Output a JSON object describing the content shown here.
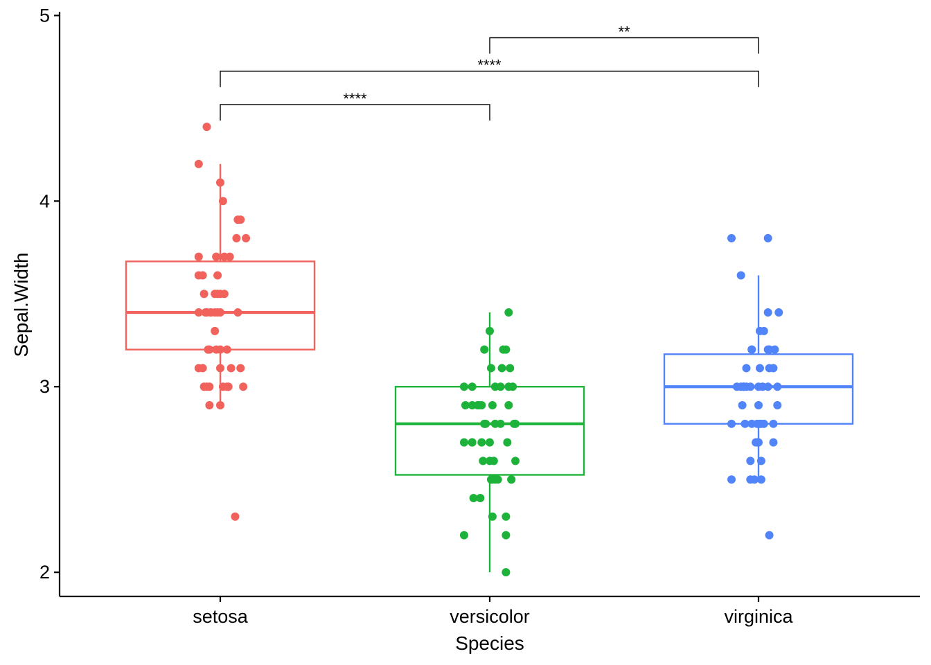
{
  "chart_data": {
    "type": "boxplot",
    "xlabel": "Species",
    "ylabel": "Sepal.Width",
    "ylim": [
      1.87,
      5.02
    ],
    "yticks": [
      2,
      3,
      4,
      5
    ],
    "grid": false,
    "legend": "none",
    "categories": [
      "setosa",
      "versicolor",
      "virginica"
    ],
    "colors": [
      "#F0625B",
      "#1DB33A",
      "#5184F8"
    ],
    "boxes": [
      {
        "category": "setosa",
        "min": 2.9,
        "q1": 3.2,
        "median": 3.4,
        "q3": 3.675,
        "max": 4.2
      },
      {
        "category": "versicolor",
        "min": 2.0,
        "q1": 2.525,
        "median": 2.8,
        "q3": 3.0,
        "max": 3.4
      },
      {
        "category": "virginica",
        "min": 2.5,
        "q1": 2.8,
        "median": 3.0,
        "q3": 3.175,
        "max": 3.6
      }
    ],
    "points": [
      {
        "category": "setosa",
        "jitter": [
          -0.1,
          -0.16,
          0.0,
          0.02,
          0.15,
          0.13,
          0.12,
          0.19,
          0.03,
          -0.03,
          -0.16,
          0.07,
          -0.13,
          -0.02,
          -0.16,
          -0.02,
          0.0,
          -0.04,
          -0.12,
          0.03,
          0.13,
          -0.1,
          -0.11,
          -0.04,
          -0.16,
          -0.02,
          0.0,
          -0.07,
          -0.07,
          -0.04,
          -0.08,
          -0.09,
          0.05,
          -0.03,
          0.0,
          0.08,
          0.15,
          0.0,
          -0.13,
          -0.16,
          0.05,
          -0.12,
          -0.08,
          0.02,
          -0.1,
          0.06,
          0.17,
          0.0,
          -0.08,
          0.11
        ],
        "values": [
          4.4,
          4.2,
          4.1,
          4.0,
          3.9,
          3.9,
          3.8,
          3.8,
          3.7,
          3.7,
          3.7,
          3.7,
          3.6,
          3.6,
          3.6,
          3.5,
          3.5,
          3.5,
          3.5,
          3.5,
          3.4,
          3.4,
          3.4,
          3.4,
          3.4,
          3.4,
          3.4,
          3.4,
          3.4,
          3.3,
          3.2,
          3.2,
          3.2,
          3.2,
          3.2,
          3.1,
          3.1,
          3.1,
          3.1,
          3.1,
          3.0,
          3.0,
          3.0,
          3.0,
          3.0,
          3.0,
          3.0,
          2.9,
          2.9,
          2.3
        ]
      },
      {
        "category": "versicolor",
        "jitter": [
          0.14,
          -0.0,
          0.1,
          -0.04,
          0.12,
          0.15,
          0.01,
          0.09,
          0.04,
          -0.19,
          -0.13,
          0.14,
          0.08,
          0.17,
          0.14,
          -0.09,
          -0.08,
          -0.18,
          -0.13,
          -0.06,
          0.02,
          -0.03,
          0.04,
          0.18,
          0.08,
          -0.04,
          0.19,
          0.13,
          -0.19,
          -0.13,
          0.0,
          -0.13,
          -0.06,
          -0.05,
          0.19,
          0.0,
          0.03,
          0.02,
          0.01,
          0.06,
          0.04,
          0.16,
          0.16,
          -0.07,
          -0.12,
          0.02,
          0.12,
          0.12,
          -0.19,
          0.12
        ],
        "values": [
          3.4,
          3.3,
          3.2,
          3.2,
          3.2,
          3.1,
          3.1,
          3.1,
          3.0,
          3.0,
          3.0,
          3.0,
          3.0,
          3.0,
          2.9,
          2.9,
          2.9,
          2.9,
          2.9,
          2.9,
          2.9,
          2.8,
          2.8,
          2.8,
          2.8,
          2.8,
          2.8,
          2.7,
          2.7,
          2.7,
          2.7,
          2.7,
          2.7,
          2.6,
          2.6,
          2.6,
          2.6,
          2.5,
          2.5,
          2.5,
          2.5,
          2.5,
          2.5,
          2.4,
          2.4,
          2.3,
          2.3,
          2.2,
          2.2,
          2.0
        ]
      },
      {
        "category": "virginica",
        "jitter": [
          -0.2,
          0.07,
          -0.13,
          0.07,
          0.15,
          0.01,
          0.04,
          0.08,
          0.12,
          -0.05,
          0.07,
          0.08,
          -0.05,
          0.11,
          0.08,
          -0.09,
          0.01,
          -0.11,
          0.14,
          0.03,
          -0.13,
          -0.16,
          -0.11,
          -0.06,
          0.07,
          0.0,
          -0.11,
          -0.09,
          -0.12,
          0.0,
          0.14,
          0.02,
          -0.01,
          -0.1,
          0.11,
          0.01,
          -0.2,
          0.04,
          -0.05,
          0.11,
          -0.01,
          -0.02,
          0.0,
          -0.06,
          0.02,
          -0.2,
          -0.06,
          -0.03,
          0.02,
          0.08
        ],
        "values": [
          3.8,
          3.8,
          3.6,
          3.4,
          3.4,
          3.3,
          3.3,
          3.2,
          3.2,
          3.2,
          3.2,
          3.2,
          3.2,
          3.1,
          3.1,
          3.1,
          3.1,
          3.0,
          3.0,
          3.0,
          3.0,
          3.0,
          3.0,
          3.0,
          3.0,
          3.0,
          3.0,
          3.0,
          2.9,
          2.9,
          2.9,
          2.8,
          2.8,
          2.8,
          2.8,
          2.8,
          2.8,
          2.8,
          2.8,
          2.7,
          2.7,
          2.7,
          2.7,
          2.6,
          2.6,
          2.5,
          2.5,
          2.5,
          2.5,
          2.2
        ]
      }
    ],
    "comparisons": [
      {
        "from": "setosa",
        "to": "versicolor",
        "y": 4.52,
        "label": "****"
      },
      {
        "from": "setosa",
        "to": "virginica",
        "y": 4.7,
        "label": "****"
      },
      {
        "from": "versicolor",
        "to": "virginica",
        "y": 4.88,
        "label": "**"
      }
    ]
  }
}
